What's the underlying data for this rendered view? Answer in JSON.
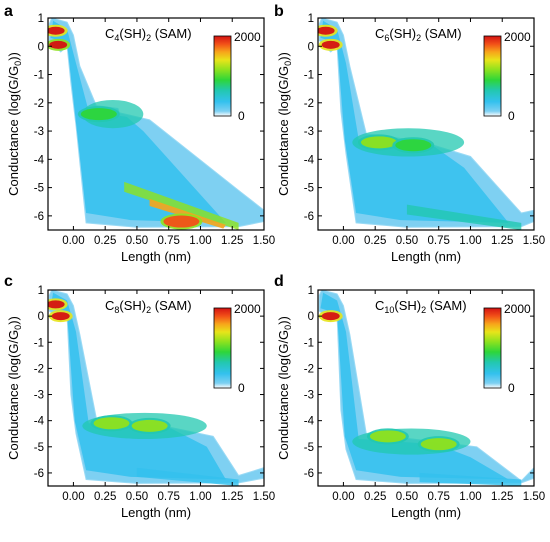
{
  "chart_data": [
    {
      "panel": "a",
      "type": "heatmap",
      "title_main": "C",
      "title_sub1": "4",
      "title_mid": "(SH)",
      "title_sub2": "2",
      "title_end": " (SAM)",
      "xlabel": "Length (nm)",
      "ylabel": "Conductance (log(G/G",
      "ylabel_sub": "0",
      "ylabel_end": "))",
      "xlim": [
        -0.2,
        1.5
      ],
      "ylim": [
        -6.5,
        1
      ],
      "xticks": [
        "0.00",
        "0.25",
        "0.50",
        "0.75",
        "1.00",
        "1.25",
        "1.50"
      ],
      "yticks": [
        "1",
        "0",
        "-1",
        "-2",
        "-3",
        "-4",
        "-5",
        "-6"
      ],
      "colorbar": {
        "min_label": "0",
        "max_label": "2000",
        "min": 0,
        "max": 2000
      },
      "cliff_y": -2.3,
      "plateau": {
        "y": -2.4,
        "x_end": 0.6,
        "x_end_y": -2.6
      },
      "tail": {
        "y_start": -4.8,
        "y_end": -6.3,
        "x_start": 0.4,
        "x_end": 1.3,
        "peak": 1800
      },
      "features": [
        {
          "x": -0.14,
          "y": 0.55,
          "peak": 2000
        },
        {
          "x": -0.12,
          "y": 0.05,
          "peak": 1900
        },
        {
          "x": 0.2,
          "y": -2.4,
          "peak": 900
        },
        {
          "x": 0.85,
          "y": -6.2,
          "peak": 1800
        }
      ]
    },
    {
      "panel": "b",
      "type": "heatmap",
      "title_main": "C",
      "title_sub1": "6",
      "title_mid": "(SH)",
      "title_sub2": "2",
      "title_end": " (SAM)",
      "xlabel": "Length (nm)",
      "ylabel": "Conductance (log(G/G",
      "ylabel_sub": "0",
      "ylabel_end": "))",
      "xlim": [
        -0.2,
        1.5
      ],
      "ylim": [
        -6.5,
        1
      ],
      "xticks": [
        "0.00",
        "0.25",
        "0.50",
        "0.75",
        "1.00",
        "1.25",
        "1.50"
      ],
      "yticks": [
        "1",
        "0",
        "-1",
        "-2",
        "-3",
        "-4",
        "-5",
        "-6"
      ],
      "colorbar": {
        "min_label": "0",
        "max_label": "2000",
        "min": 0,
        "max": 2000
      },
      "cliff_y": -3.3,
      "plateau": {
        "y": -3.4,
        "x_end": 1.0,
        "x_end_y": -3.9
      },
      "tail": {
        "y_start": -5.6,
        "y_end": -6.3,
        "x_start": 0.5,
        "x_end": 1.4,
        "peak": 700
      },
      "features": [
        {
          "x": -0.14,
          "y": 0.55,
          "peak": 2000
        },
        {
          "x": -0.1,
          "y": 0.05,
          "peak": 2000
        },
        {
          "x": 0.28,
          "y": -3.4,
          "peak": 1000
        },
        {
          "x": 0.55,
          "y": -3.5,
          "peak": 800
        }
      ]
    },
    {
      "panel": "c",
      "type": "heatmap",
      "title_main": "C",
      "title_sub1": "8",
      "title_mid": "(SH)",
      "title_sub2": "2",
      "title_end": " (SAM)",
      "xlabel": "Length (nm)",
      "ylabel": "Conductance (log(G/G",
      "ylabel_sub": "0",
      "ylabel_end": "))",
      "xlim": [
        -0.2,
        1.5
      ],
      "ylim": [
        -6.5,
        1
      ],
      "xticks": [
        "0.00",
        "0.25",
        "0.50",
        "0.75",
        "1.00",
        "1.25",
        "1.50"
      ],
      "yticks": [
        "1",
        "0",
        "-1",
        "-2",
        "-3",
        "-4",
        "-5",
        "-6"
      ],
      "colorbar": {
        "min_label": "0",
        "max_label": "2000",
        "min": 0,
        "max": 2000
      },
      "cliff_y": -4.0,
      "plateau": {
        "y": -4.2,
        "x_end": 1.1,
        "x_end_y": -4.6
      },
      "tail": {
        "y_start": -5.8,
        "y_end": -6.3,
        "x_start": 0.5,
        "x_end": 1.3,
        "peak": 500
      },
      "features": [
        {
          "x": -0.14,
          "y": 0.45,
          "peak": 2000
        },
        {
          "x": -0.1,
          "y": 0.0,
          "peak": 2000
        },
        {
          "x": 0.3,
          "y": -4.1,
          "peak": 1000
        },
        {
          "x": 0.6,
          "y": -4.2,
          "peak": 1000
        }
      ]
    },
    {
      "panel": "d",
      "type": "heatmap",
      "title_main": "C",
      "title_sub1": "10",
      "title_mid": "(SH)",
      "title_sub2": "2",
      "title_end": " (SAM)",
      "xlabel": "Length (nm)",
      "ylabel": "Conductance (log(G/G",
      "ylabel_sub": "0",
      "ylabel_end": "))",
      "xlim": [
        -0.2,
        1.5
      ],
      "ylim": [
        -6.5,
        1
      ],
      "xticks": [
        "0.00",
        "0.25",
        "0.50",
        "0.75",
        "1.00",
        "1.25",
        "1.50"
      ],
      "yticks": [
        "1",
        "0",
        "-1",
        "-2",
        "-3",
        "-4",
        "-5",
        "-6"
      ],
      "colorbar": {
        "min_label": "0",
        "max_label": "2000",
        "min": 0,
        "max": 2000
      },
      "cliff_y": -4.6,
      "plateau": {
        "y": -4.8,
        "x_end": 1.05,
        "x_end_y": -5.0
      },
      "tail": {
        "y_start": -6.0,
        "y_end": -6.3,
        "x_start": 0.6,
        "x_end": 1.4,
        "peak": 400
      },
      "features": [
        {
          "x": -0.1,
          "y": 0.0,
          "peak": 2000
        },
        {
          "x": 0.35,
          "y": -4.6,
          "peak": 1000
        },
        {
          "x": 0.75,
          "y": -4.9,
          "peak": 1000
        }
      ]
    }
  ],
  "colormap": [
    "#ffffff",
    "#7ed0f2",
    "#33c1ee",
    "#22c8b0",
    "#2ed63a",
    "#8fe21e",
    "#e8e41a",
    "#f7a51a",
    "#f25018",
    "#d41212"
  ]
}
